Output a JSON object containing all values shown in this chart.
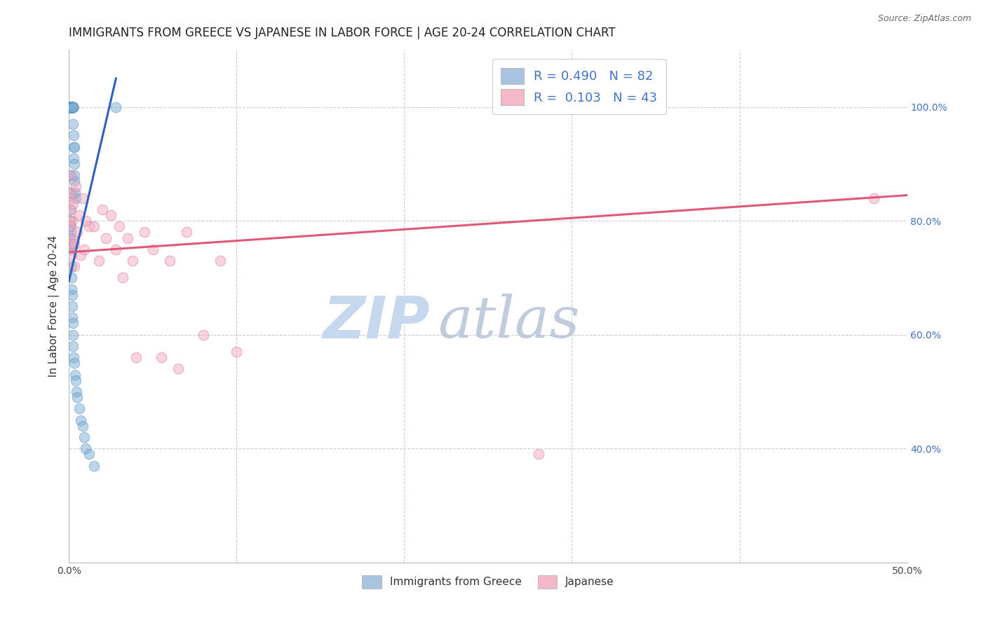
{
  "title": "IMMIGRANTS FROM GREECE VS JAPANESE IN LABOR FORCE | AGE 20-24 CORRELATION CHART",
  "source": "Source: ZipAtlas.com",
  "ylabel": "In Labor Force | Age 20-24",
  "xmin": 0.0,
  "xmax": 0.5,
  "ymin": 0.2,
  "ymax": 1.1,
  "ytick_values": [
    0.4,
    0.6,
    0.8,
    1.0
  ],
  "ytick_labels": [
    "40.0%",
    "60.0%",
    "80.0%",
    "100.0%"
  ],
  "xtick_values": [
    0.0,
    0.1,
    0.2,
    0.3,
    0.4,
    0.5
  ],
  "xtick_labels": [
    "0.0%",
    "",
    "",
    "",
    "",
    "50.0%"
  ],
  "legend_entries": [
    {
      "color": "#a8c4e0",
      "edge": "#7badd4",
      "r": "0.490",
      "n": "82"
    },
    {
      "color": "#f4b8c8",
      "edge": "#e07898",
      "r": "0.103",
      "n": "43"
    }
  ],
  "legend_labels": [
    "Immigrants from Greece",
    "Japanese"
  ],
  "watermark_zip": "ZIP",
  "watermark_atlas": "atlas",
  "blue_scatter_x": [
    0.0002,
    0.0003,
    0.0004,
    0.0004,
    0.0005,
    0.0005,
    0.0006,
    0.0006,
    0.0007,
    0.0007,
    0.0008,
    0.0008,
    0.0009,
    0.0009,
    0.001,
    0.001,
    0.001,
    0.0012,
    0.0012,
    0.0013,
    0.0013,
    0.0014,
    0.0014,
    0.0015,
    0.0015,
    0.0016,
    0.0016,
    0.0017,
    0.0017,
    0.0018,
    0.002,
    0.002,
    0.002,
    0.0022,
    0.0022,
    0.0023,
    0.0023,
    0.0024,
    0.0025,
    0.0025,
    0.0025,
    0.0026,
    0.0027,
    0.0028,
    0.003,
    0.003,
    0.003,
    0.0032,
    0.0035,
    0.004,
    0.0003,
    0.0004,
    0.0005,
    0.0006,
    0.0007,
    0.0008,
    0.001,
    0.001,
    0.0012,
    0.0014,
    0.0015,
    0.0016,
    0.0018,
    0.002,
    0.002,
    0.0022,
    0.0024,
    0.0025,
    0.0027,
    0.003,
    0.0035,
    0.004,
    0.0045,
    0.005,
    0.006,
    0.007,
    0.008,
    0.009,
    0.01,
    0.012,
    0.015,
    0.028
  ],
  "blue_scatter_y": [
    1.0,
    1.0,
    1.0,
    1.0,
    1.0,
    1.0,
    1.0,
    1.0,
    1.0,
    1.0,
    1.0,
    1.0,
    1.0,
    1.0,
    1.0,
    1.0,
    1.0,
    1.0,
    1.0,
    1.0,
    1.0,
    1.0,
    1.0,
    1.0,
    1.0,
    1.0,
    1.0,
    1.0,
    1.0,
    1.0,
    1.0,
    1.0,
    1.0,
    1.0,
    1.0,
    1.0,
    1.0,
    1.0,
    1.0,
    1.0,
    0.97,
    0.95,
    0.93,
    0.91,
    0.93,
    0.9,
    0.87,
    0.88,
    0.85,
    0.84,
    0.88,
    0.85,
    0.82,
    0.8,
    0.79,
    0.77,
    0.76,
    0.78,
    0.75,
    0.72,
    0.7,
    0.68,
    0.67,
    0.65,
    0.63,
    0.62,
    0.6,
    0.58,
    0.56,
    0.55,
    0.53,
    0.52,
    0.5,
    0.49,
    0.47,
    0.45,
    0.44,
    0.42,
    0.4,
    0.39,
    0.37,
    1.0
  ],
  "pink_scatter_x": [
    0.0003,
    0.0005,
    0.0007,
    0.001,
    0.001,
    0.0012,
    0.0014,
    0.0016,
    0.002,
    0.002,
    0.0025,
    0.003,
    0.003,
    0.004,
    0.005,
    0.006,
    0.007,
    0.008,
    0.009,
    0.01,
    0.012,
    0.015,
    0.018,
    0.02,
    0.022,
    0.025,
    0.028,
    0.03,
    0.032,
    0.035,
    0.038,
    0.04,
    0.045,
    0.05,
    0.055,
    0.06,
    0.065,
    0.07,
    0.08,
    0.09,
    0.1,
    0.28,
    0.48
  ],
  "pink_scatter_y": [
    0.8,
    0.84,
    0.76,
    0.82,
    0.79,
    0.88,
    0.74,
    0.85,
    0.77,
    0.8,
    0.83,
    0.76,
    0.72,
    0.86,
    0.78,
    0.81,
    0.74,
    0.84,
    0.75,
    0.8,
    0.79,
    0.79,
    0.73,
    0.82,
    0.77,
    0.81,
    0.75,
    0.79,
    0.7,
    0.77,
    0.73,
    0.56,
    0.78,
    0.75,
    0.56,
    0.73,
    0.54,
    0.78,
    0.6,
    0.73,
    0.57,
    0.39,
    0.84
  ],
  "blue_line_x": [
    0.0,
    0.028
  ],
  "blue_line_y": [
    0.695,
    1.05
  ],
  "pink_line_x": [
    0.0,
    0.5
  ],
  "pink_line_y": [
    0.745,
    0.845
  ],
  "dot_size": 110,
  "dot_alpha": 0.5,
  "grid_color": "#cccccc",
  "title_fontsize": 12,
  "axis_label_fontsize": 11,
  "tick_fontsize": 10,
  "scatter_blue_color": "#7badd4",
  "scatter_blue_edge": "#5a8fc0",
  "scatter_pink_color": "#f4a8bc",
  "scatter_pink_edge": "#d07898",
  "trend_blue_color": "#3060c0",
  "trend_pink_color": "#e05878",
  "watermark_color_zip": "#c5d8ee",
  "watermark_color_atlas": "#c0ccdc",
  "watermark_fontsize": 60,
  "right_axis_color": "#4472c4"
}
